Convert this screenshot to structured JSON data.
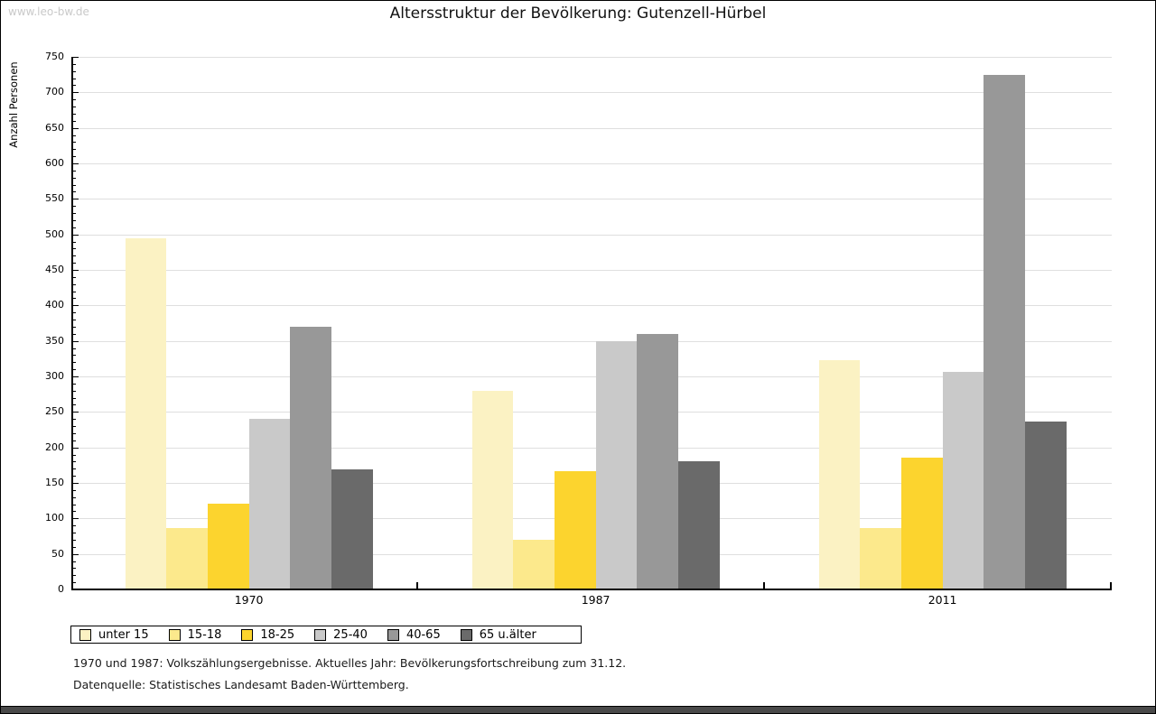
{
  "watermark": "www.leo-bw.de",
  "chart_data": {
    "type": "bar",
    "title": "Altersstruktur der Bevölkerung: Gutenzell-Hürbel",
    "ylabel": "Anzahl Personen",
    "xlabel": "",
    "categories": [
      "1970",
      "1987",
      "2011"
    ],
    "series": [
      {
        "name": "unter 15",
        "color": "#fbf2c3",
        "values": [
          495,
          280,
          323
        ]
      },
      {
        "name": "15-18",
        "color": "#fce98c",
        "values": [
          87,
          70,
          87
        ]
      },
      {
        "name": "18-25",
        "color": "#fcd42e",
        "values": [
          121,
          167,
          185
        ]
      },
      {
        "name": "25-40",
        "color": "#c9c9c9",
        "values": [
          240,
          350,
          306
        ]
      },
      {
        "name": "40-65",
        "color": "#989898",
        "values": [
          370,
          360,
          725
        ]
      },
      {
        "name": "65 u.älter",
        "color": "#6a6a6a",
        "values": [
          169,
          180,
          236
        ]
      }
    ],
    "ylim": [
      0,
      750
    ],
    "yticks": [
      0,
      50,
      100,
      150,
      200,
      250,
      300,
      350,
      400,
      450,
      500,
      550,
      600,
      650,
      700,
      750
    ],
    "ytick_step": 50,
    "minor_tick_step": 10,
    "grid": true,
    "legend_position": "bottom"
  },
  "footer": {
    "line1": "1970 und 1987: Volkszählungsergebnisse. Aktuelles Jahr: Bevölkerungsfortschreibung zum 31.12.",
    "line2": "Datenquelle: Statistisches Landesamt Baden-Württemberg."
  }
}
